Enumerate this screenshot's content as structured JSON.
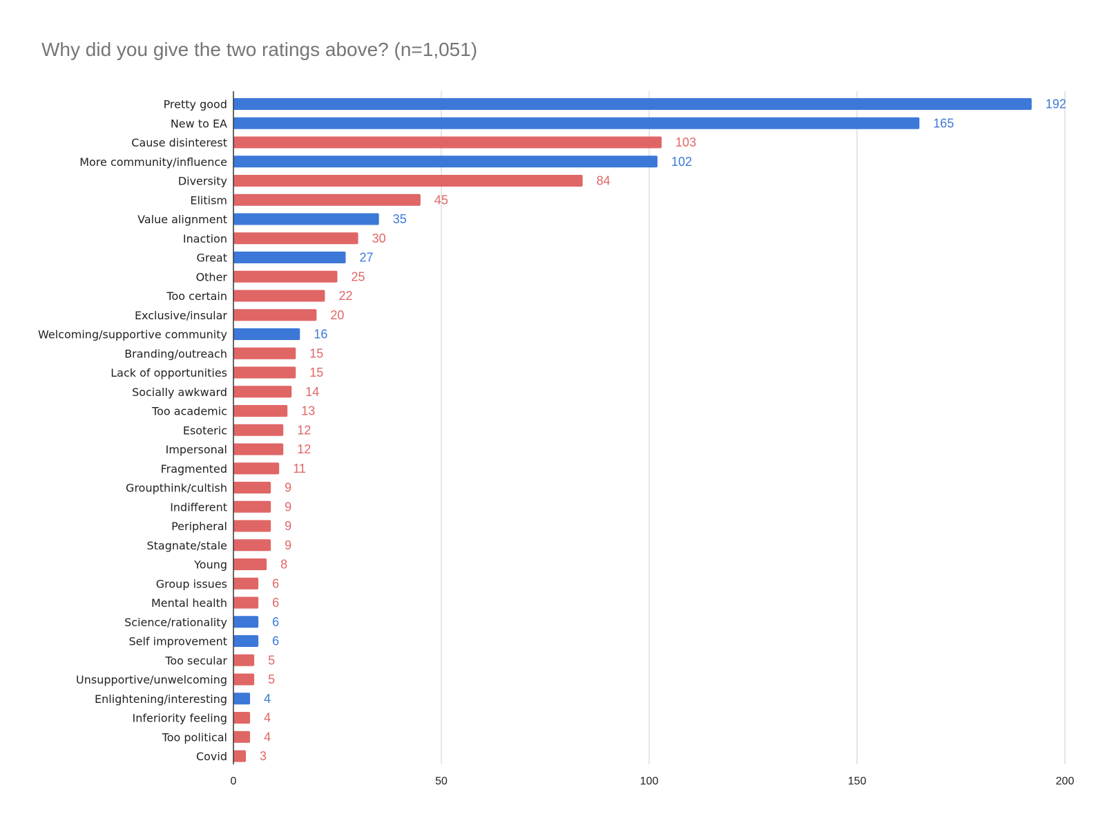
{
  "chart_data": {
    "type": "bar",
    "orientation": "horizontal",
    "title": "Why did you give the two ratings above? (n=1,051)",
    "xlabel": "",
    "ylabel": "",
    "xlim": [
      0,
      200
    ],
    "x_ticks": [
      "0",
      "50",
      "100",
      "150",
      "200"
    ],
    "grid": true,
    "legend": "none",
    "colors": {
      "blue": "#3c78d8",
      "red": "#e06666"
    },
    "categories": [
      "Pretty good",
      "New to EA",
      "Cause disinterest",
      "More community/influence",
      "Diversity",
      "Elitism",
      "Value alignment",
      "Inaction",
      "Great",
      "Other",
      "Too certain",
      "Exclusive/insular",
      "Welcoming/supportive community",
      "Branding/outreach",
      "Lack of opportunities",
      "Socially awkward",
      "Too academic",
      "Esoteric",
      "Impersonal",
      "Fragmented",
      "Groupthink/cultish",
      "Indifferent",
      "Peripheral",
      "Stagnate/stale",
      "Young",
      "Group issues",
      "Mental health",
      "Science/rationality",
      "Self improvement",
      "Too secular",
      "Unsupportive/unwelcoming",
      "Enlightening/interesting",
      "Inferiority feeling",
      "Too political",
      "Covid"
    ],
    "values": [
      192,
      165,
      103,
      102,
      84,
      45,
      35,
      30,
      27,
      25,
      22,
      20,
      16,
      15,
      15,
      14,
      13,
      12,
      12,
      11,
      9,
      9,
      9,
      9,
      8,
      6,
      6,
      6,
      6,
      5,
      5,
      4,
      4,
      4,
      3
    ],
    "bar_colors": [
      "blue",
      "blue",
      "red",
      "blue",
      "red",
      "red",
      "blue",
      "red",
      "blue",
      "red",
      "red",
      "red",
      "blue",
      "red",
      "red",
      "red",
      "red",
      "red",
      "red",
      "red",
      "red",
      "red",
      "red",
      "red",
      "red",
      "red",
      "red",
      "blue",
      "blue",
      "red",
      "red",
      "blue",
      "red",
      "red",
      "red"
    ]
  }
}
